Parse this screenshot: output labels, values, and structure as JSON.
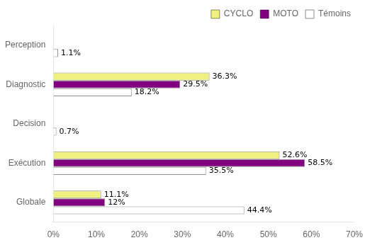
{
  "chart_data": {
    "type": "bar",
    "orientation": "horizontal",
    "categories": [
      "Globale",
      "Exécution",
      "Decision",
      "Diagnostic",
      "Perception"
    ],
    "series": [
      {
        "name": "CYCLO",
        "color": "#f0f080",
        "values": [
          11.1,
          52.6,
          0.0,
          36.3,
          0.0
        ],
        "value_labels": [
          "11.1%",
          "52.6%",
          null,
          "36.3%",
          null
        ]
      },
      {
        "name": "MOTO",
        "color": "#800080",
        "values": [
          12.0,
          58.5,
          0.0,
          29.5,
          0.0
        ],
        "value_labels": [
          "12%",
          "58.5%",
          null,
          "29.5%",
          null
        ]
      },
      {
        "name": "Témoins",
        "color": "#ffffff",
        "values": [
          44.4,
          35.5,
          0.7,
          18.2,
          1.1
        ],
        "value_labels": [
          "44.4%",
          "35.5%",
          "0.7%",
          "18.2%",
          "1.1%"
        ]
      }
    ],
    "xlim": [
      0,
      70
    ],
    "xticks": [
      {
        "value": 0,
        "label": "0%"
      },
      {
        "value": 10,
        "label": "10%"
      },
      {
        "value": 20,
        "label": "20%"
      },
      {
        "value": 30,
        "label": "30%"
      },
      {
        "value": 40,
        "label": "40%"
      },
      {
        "value": 50,
        "label": "50%"
      },
      {
        "value": 60,
        "label": "60%"
      },
      {
        "value": 70,
        "label": "70%"
      }
    ],
    "grid": false,
    "legend": "upper right",
    "data_labels": true
  }
}
